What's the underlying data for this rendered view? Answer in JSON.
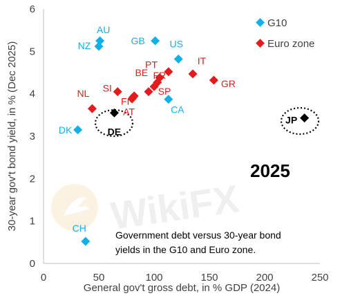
{
  "chart_data": {
    "type": "scatter",
    "title": "",
    "xlabel": "General gov't gross debt, in % GDP (2024)",
    "ylabel": "30-year gov't bond yield, in % (Dec 2025)",
    "xlim": [
      0,
      250
    ],
    "ylim": [
      0,
      6
    ],
    "xticks": [
      "0",
      "50",
      "100",
      "150",
      "200",
      "250"
    ],
    "yticks": [
      "0",
      "1",
      "2",
      "3",
      "4",
      "5",
      "6"
    ],
    "grid": false,
    "legend_position": "top-right",
    "year_label": "2025",
    "note": [
      "Government debt versus 30-year bond",
      "yields in the G10 and Euro zone."
    ],
    "series": [
      {
        "name": "G10",
        "color": "#12b0e8",
        "points": [
          {
            "label": "AU",
            "x": 51,
            "y": 5.25
          },
          {
            "label": "NZ",
            "x": 50,
            "y": 5.12
          },
          {
            "label": "GB",
            "x": 101,
            "y": 5.25
          },
          {
            "label": "US",
            "x": 122,
            "y": 4.82
          },
          {
            "label": "CA",
            "x": 113,
            "y": 3.87
          },
          {
            "label": "DK",
            "x": 31,
            "y": 3.15
          },
          {
            "label": "CH",
            "x": 38,
            "y": 0.52
          }
        ]
      },
      {
        "name": "Euro zone",
        "color": "#e41a1c",
        "points": [
          {
            "label": "PT",
            "x": 105,
            "y": 4.38
          },
          {
            "label": "IT",
            "x": 135,
            "y": 4.47
          },
          {
            "label": "FR",
            "x": 113,
            "y": 4.52
          },
          {
            "label": "GR",
            "x": 154,
            "y": 4.32
          },
          {
            "label": "SI",
            "x": 67,
            "y": 4.05
          },
          {
            "label": "BE",
            "x": 103,
            "y": 4.27
          },
          {
            "label": "SP",
            "x": 100,
            "y": 4.17
          },
          {
            "label": "",
            "x": 95,
            "y": 4.05
          },
          {
            "label": "FI",
            "x": 82,
            "y": 3.95
          },
          {
            "label": "",
            "x": 80,
            "y": 3.88
          },
          {
            "label": "AT",
            "x": 81,
            "y": 3.92
          },
          {
            "label": "NL",
            "x": 44,
            "y": 3.65
          }
        ]
      },
      {
        "name": "",
        "color": "#000000",
        "points": [
          {
            "label": "DE",
            "x": 64,
            "y": 3.55
          },
          {
            "label": "JP",
            "x": 236,
            "y": 3.43
          }
        ]
      }
    ]
  },
  "watermark": "WikiFX"
}
